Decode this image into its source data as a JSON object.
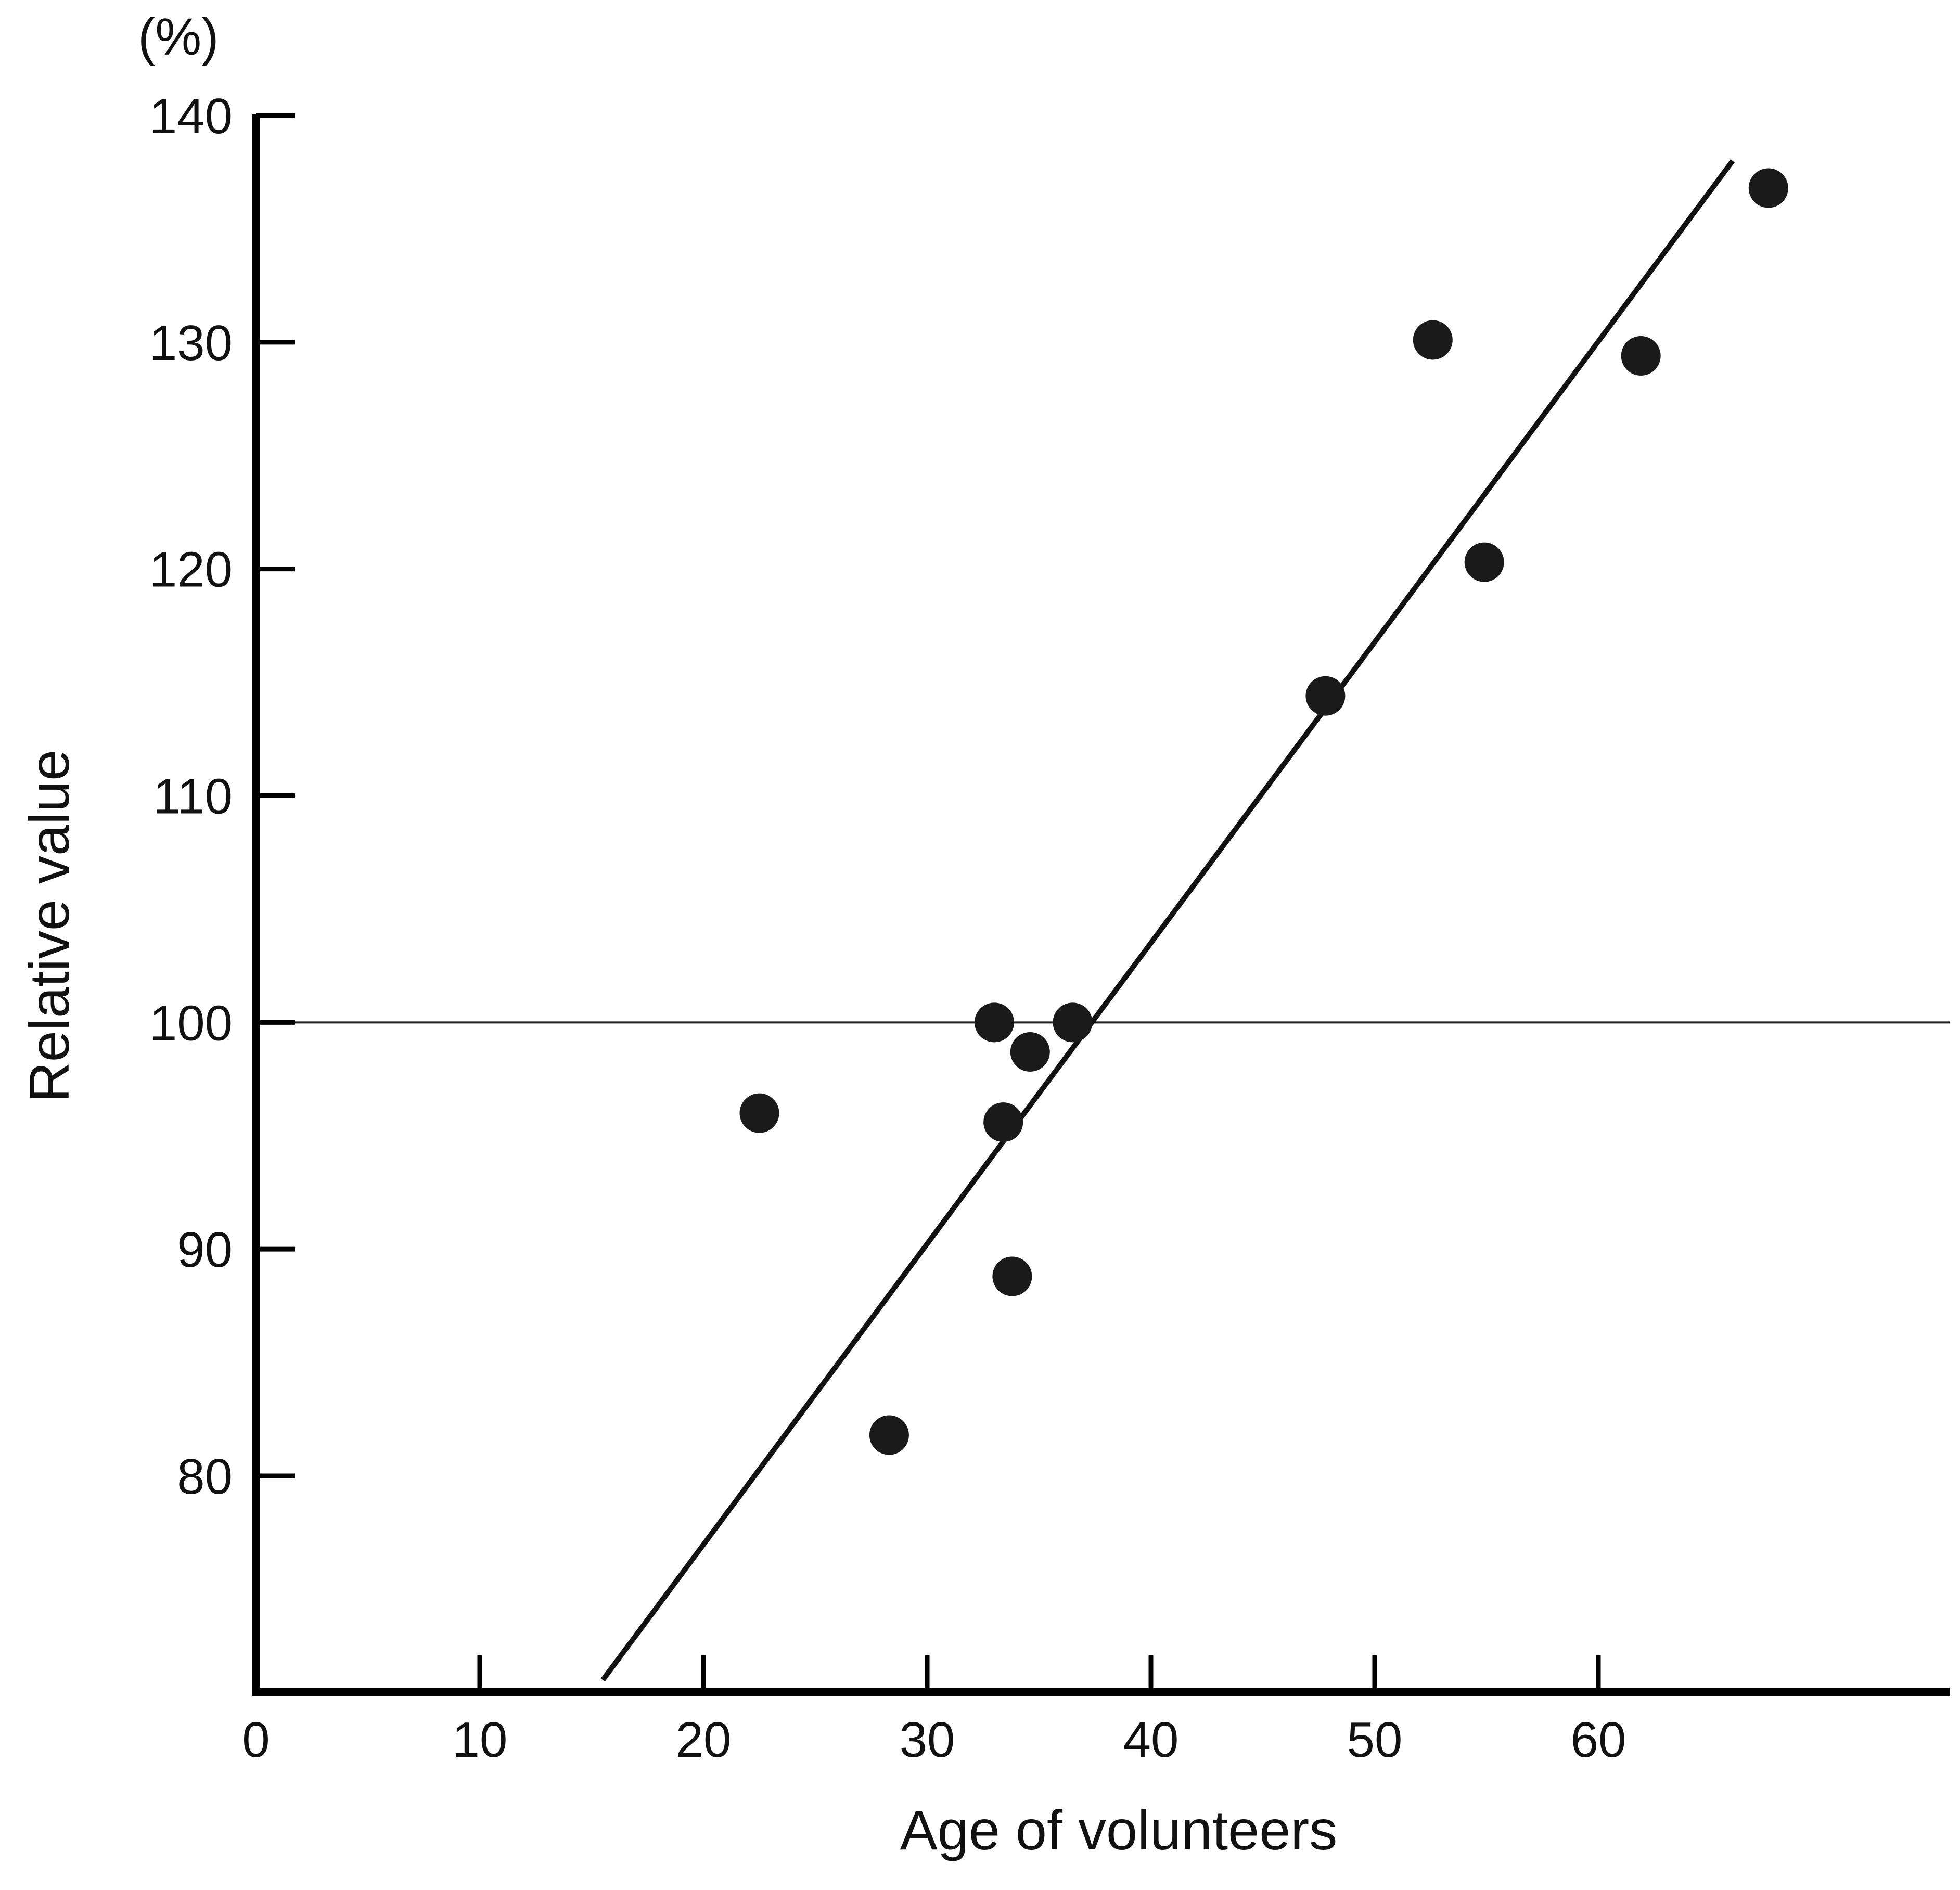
{
  "chart_data": {
    "type": "scatter",
    "title": "",
    "xlabel": "Age of volunteers",
    "ylabel": "Relative value",
    "y_unit": "(%)",
    "xlim": [
      0,
      76
    ],
    "ylim": [
      71,
      140
    ],
    "x_ticks": [
      0,
      10,
      20,
      30,
      40,
      50,
      60
    ],
    "y_ticks": [
      80,
      90,
      100,
      110,
      120,
      130,
      140
    ],
    "grid": false,
    "reference_line": {
      "y": 100
    },
    "trend_line": {
      "x": [
        15.5,
        66
      ],
      "y": [
        71,
        138
      ]
    },
    "series": [
      {
        "points": [
          {
            "x": 22.5,
            "y": 96
          },
          {
            "x": 28.3,
            "y": 81.8
          },
          {
            "x": 33.0,
            "y": 100
          },
          {
            "x": 33.4,
            "y": 95.6
          },
          {
            "x": 33.8,
            "y": 88.8
          },
          {
            "x": 34.6,
            "y": 98.7
          },
          {
            "x": 36.5,
            "y": 100
          },
          {
            "x": 47.8,
            "y": 114.4
          },
          {
            "x": 52.6,
            "y": 130.1
          },
          {
            "x": 54.9,
            "y": 120.3
          },
          {
            "x": 61.9,
            "y": 129.4
          },
          {
            "x": 67.6,
            "y": 136.8
          }
        ]
      }
    ],
    "colors": {
      "marker": "#1a1a1a",
      "axis": "#000000",
      "line": "#111111"
    }
  }
}
